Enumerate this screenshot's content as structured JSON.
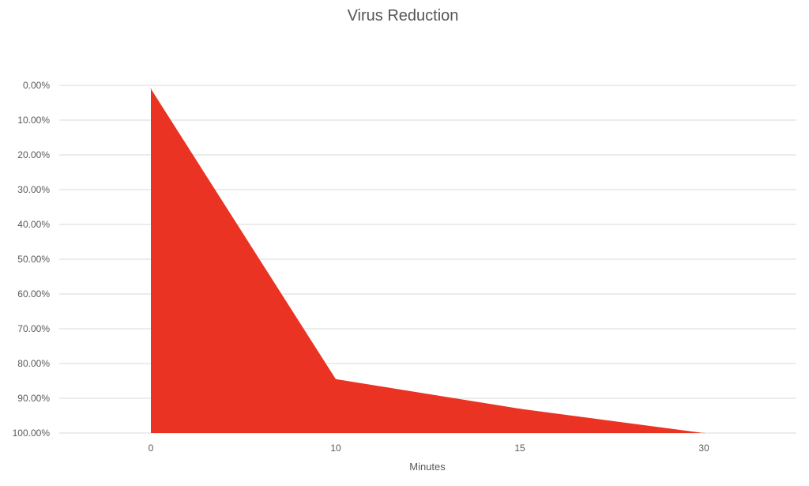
{
  "chart_data": {
    "type": "area",
    "title": "Virus Reduction",
    "xlabel": "Minutes",
    "ylabel": "",
    "categories": [
      "0",
      "10",
      "15",
      "30"
    ],
    "series": [
      {
        "values": [
          0.01,
          0.845,
          0.93,
          1.0
        ],
        "color": "#ea3323"
      }
    ],
    "y_axis": {
      "reversed": true,
      "ylim": [
        0,
        1.0
      ],
      "ticks": [
        0,
        0.1,
        0.2,
        0.3,
        0.4,
        0.5,
        0.6,
        0.7,
        0.8,
        0.9,
        1.0
      ],
      "tick_labels": [
        "0.00%",
        "10.00%",
        "20.00%",
        "30.00%",
        "40.00%",
        "50.00%",
        "60.00%",
        "70.00%",
        "80.00%",
        "90.00%",
        "100.00%"
      ]
    },
    "grid": true,
    "legend": "none"
  }
}
